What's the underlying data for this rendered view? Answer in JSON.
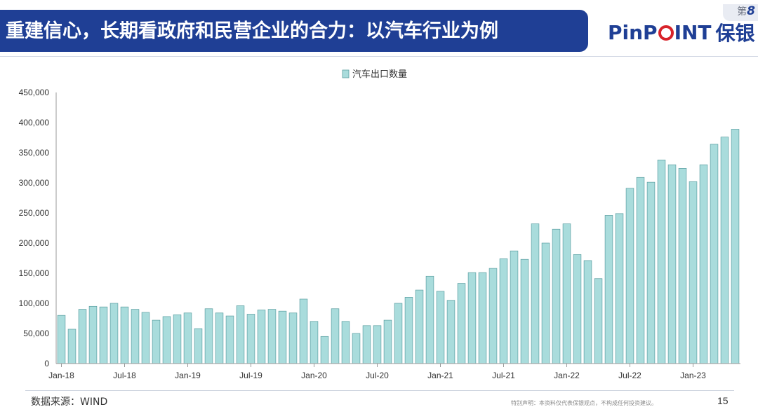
{
  "header": {
    "title": "重建信心，长期看政府和民营企业的合力：以汽车行业为例",
    "logo_pre": "PinP",
    "logo_post": "INT",
    "logo_cn": "保银",
    "badge_prefix": "第",
    "badge_num": "8"
  },
  "footer": {
    "source": "数据来源：WIND",
    "disclaimer": "特别声明：本资料仅代表保银观点，不构成任何投资建议。",
    "page": "15"
  },
  "colors": {
    "header_bg": "#1f3f95",
    "bar_fill": "#a9dcdc",
    "bar_stroke": "#5a9ea0",
    "logo_red": "#d8232a"
  },
  "chart_data": {
    "type": "bar",
    "legend": "汽车出口数量",
    "legend_position": "top-center",
    "ylim": [
      0,
      450000
    ],
    "yticks": [
      "0",
      "50,000",
      "100,000",
      "150,000",
      "200,000",
      "250,000",
      "300,000",
      "350,000",
      "400,000",
      "450,000"
    ],
    "xtick_labels": [
      "Jan-18",
      "Jul-18",
      "Jan-19",
      "Jul-19",
      "Jan-20",
      "Jul-20",
      "Jan-21",
      "Jul-21",
      "Jan-22",
      "Jul-22",
      "Jan-23"
    ],
    "xtick_interval_months": 6,
    "start_month": "Jan-18",
    "values": [
      80000,
      57000,
      90000,
      95000,
      94000,
      100000,
      94000,
      90000,
      85000,
      72000,
      78000,
      81000,
      84000,
      58000,
      91000,
      84000,
      79000,
      96000,
      82000,
      89000,
      90000,
      87000,
      84000,
      107000,
      70000,
      45000,
      91000,
      70000,
      50000,
      63000,
      63000,
      72000,
      100000,
      110000,
      122000,
      145000,
      120000,
      105000,
      133000,
      151000,
      151000,
      158000,
      174000,
      187000,
      173000,
      232000,
      200000,
      223000,
      232000,
      181000,
      171000,
      141000,
      246000,
      249000,
      291000,
      309000,
      301000,
      338000,
      330000,
      324000,
      302000,
      330000,
      364000,
      376000,
      389000
    ]
  }
}
